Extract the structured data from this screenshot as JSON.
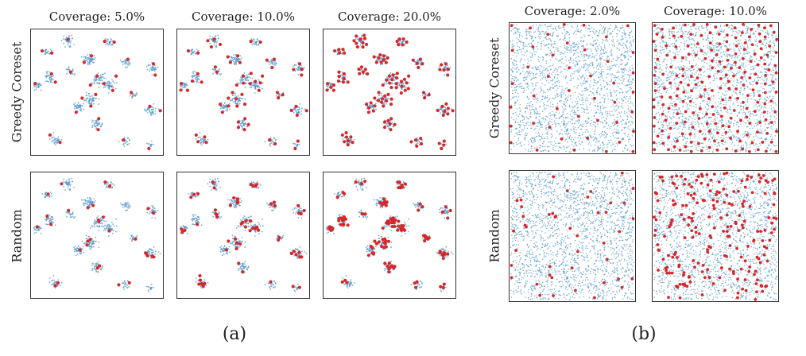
{
  "colors": {
    "data_points": "#4a90c8",
    "selected_points": "#d62728",
    "frame": "#333333"
  },
  "chart_data": [
    {
      "type": "scatter",
      "subfigure": "(a)",
      "distribution": "clustered",
      "rows": [
        "Greedy Coreset",
        "Random"
      ],
      "columns": [
        "Coverage: 5.0%",
        "Coverage: 10.0%",
        "Coverage: 20.0%"
      ],
      "coverage_percent": [
        5.0,
        10.0,
        20.0
      ],
      "series": [
        {
          "role": "all points",
          "color": "#4a90c8"
        },
        {
          "role": "selected points",
          "color": "#d62728"
        }
      ],
      "clusters": [
        [
          0.28,
          0.09,
          1.0
        ],
        [
          0.44,
          0.24,
          1.4
        ],
        [
          0.52,
          0.4,
          1.3
        ],
        [
          0.6,
          0.45,
          1.2
        ],
        [
          0.14,
          0.38,
          1.0
        ],
        [
          0.05,
          0.45,
          0.7
        ],
        [
          0.12,
          0.18,
          0.6
        ],
        [
          0.72,
          0.27,
          0.7
        ],
        [
          0.92,
          0.31,
          0.9
        ],
        [
          0.6,
          0.1,
          0.8
        ],
        [
          0.45,
          0.56,
          1.4
        ],
        [
          0.36,
          0.62,
          1.0
        ],
        [
          0.91,
          0.64,
          1.1
        ],
        [
          0.5,
          0.75,
          1.0
        ],
        [
          0.19,
          0.88,
          0.9
        ],
        [
          0.72,
          0.89,
          0.6
        ],
        [
          0.9,
          0.92,
          0.4
        ],
        [
          0.77,
          0.52,
          0.5
        ],
        [
          0.3,
          0.33,
          0.6
        ]
      ],
      "xlim": [
        0,
        1
      ],
      "ylim": [
        0,
        1
      ],
      "grid": false
    },
    {
      "type": "scatter",
      "subfigure": "(b)",
      "distribution": "uniform",
      "rows": [
        "Greedy Coreset",
        "Random"
      ],
      "columns": [
        "Coverage: 2.0%",
        "Coverage: 10.0%"
      ],
      "coverage_percent": [
        2.0,
        10.0
      ],
      "series": [
        {
          "role": "all points",
          "color": "#4a90c8"
        },
        {
          "role": "selected points",
          "color": "#d62728"
        }
      ],
      "xlim": [
        0,
        1
      ],
      "ylim": [
        0,
        1
      ],
      "grid": false
    }
  ],
  "text": {
    "a_col1": "Coverage: 5.0%",
    "a_col2": "Coverage: 10.0%",
    "a_col3": "Coverage: 20.0%",
    "b_col1": "Coverage: 2.0%",
    "b_col2": "Coverage: 10.0%",
    "row1": "Greedy Coreset",
    "row2": "Random",
    "cap_a": "(a)",
    "cap_b": "(b)"
  }
}
